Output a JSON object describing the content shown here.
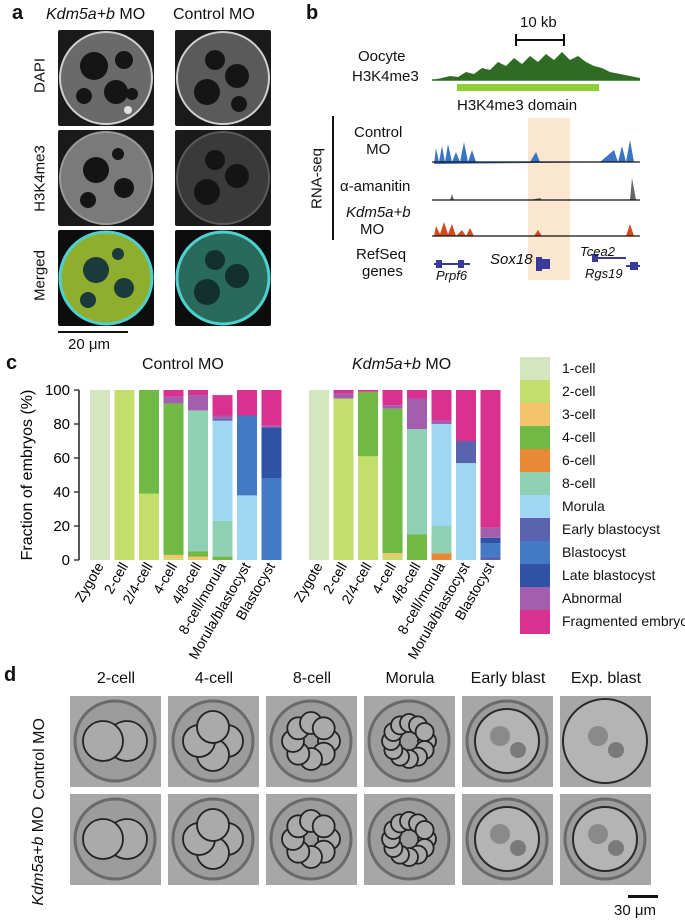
{
  "panel_a": {
    "label": "a",
    "col_titles": [
      {
        "italic": "Kdm5a+b",
        "rest": " MO"
      },
      {
        "italic": "",
        "rest": "Control MO"
      }
    ],
    "row_labels": [
      "DAPI",
      "H3K4me3",
      "Merged"
    ],
    "scale_bar": "20 μm"
  },
  "panel_b": {
    "label": "b",
    "scale_bar": "10 kb",
    "oocyte_track": "Oocyte\nH3K4me3",
    "oocyte_line1": "Oocyte",
    "oocyte_line2": "H3K4me3",
    "domain_label": "H3K4me3 domain",
    "rnaseq_label": "RNA-seq",
    "tracks": [
      {
        "line1": "Control",
        "line2": "MO",
        "italic": false,
        "color": "#3b74c4"
      },
      {
        "line1": "α-amanitin",
        "line2": "",
        "italic": false,
        "color": "#555555"
      },
      {
        "line1": "Kdm5a+b",
        "line2": "MO",
        "italic": true,
        "color": "#d24a1e"
      }
    ],
    "refseq_line1": "RefSeq",
    "refseq_line2": "genes",
    "genes": [
      "Prpf6",
      "Sox18",
      "Tcea2",
      "Rgs19"
    ]
  },
  "panel_c": {
    "label": "c",
    "titles": [
      {
        "italic": "",
        "rest": "Control MO"
      },
      {
        "italic": "Kdm5a+b",
        "rest": " MO"
      }
    ],
    "ylabel": "Fraction of embryos (%)",
    "yticks": [
      "0",
      "20",
      "40",
      "60",
      "80",
      "100"
    ]
  },
  "chart_data": {
    "type": "bar",
    "stacked": true,
    "ylabel": "Fraction of embryos (%)",
    "ylim": [
      0,
      100
    ],
    "categories": [
      "Zygote",
      "2-cell",
      "2/4-cell",
      "4-cell",
      "4/8-cell",
      "8-cell/morula",
      "Morula/blastocyst",
      "Blastocyst"
    ],
    "legend": [
      "1-cell",
      "2-cell",
      "3-cell",
      "4-cell",
      "6-cell",
      "8-cell",
      "Morula",
      "Early blastocyst",
      "Blastocyst",
      "Late blastocyst",
      "Abnormal",
      "Fragmented embryo"
    ],
    "colors": [
      "#d5e5bf",
      "#c3de6a",
      "#f4c46a",
      "#6fb944",
      "#e88a35",
      "#8fd0b4",
      "#9fd6f1",
      "#5a63b0",
      "#4479c3",
      "#2f52a5",
      "#a35ead",
      "#d9318f"
    ],
    "charts": [
      {
        "title": "Control MO",
        "stacks": [
          [
            100,
            0,
            0,
            0,
            0,
            0,
            0,
            0,
            0,
            0,
            0,
            0
          ],
          [
            0,
            100,
            0,
            0,
            0,
            0,
            0,
            0,
            0,
            0,
            0,
            0
          ],
          [
            0,
            39,
            0,
            61,
            0,
            0,
            0,
            0,
            0,
            0,
            0,
            0
          ],
          [
            0,
            1,
            2,
            89,
            0,
            0,
            0,
            0,
            0,
            0,
            4,
            4
          ],
          [
            0,
            0,
            2,
            3,
            0,
            83,
            0,
            0,
            0,
            0,
            9,
            3
          ],
          [
            0,
            0,
            0,
            2,
            0,
            21,
            59,
            1,
            0,
            0,
            2,
            12
          ],
          [
            0,
            0,
            0,
            0,
            0,
            0,
            38,
            0,
            47,
            0,
            0,
            15
          ],
          [
            0,
            0,
            0,
            0,
            0,
            0,
            0,
            0,
            48,
            30,
            1,
            21
          ]
        ]
      },
      {
        "title": "Kdm5a+b MO",
        "stacks": [
          [
            100,
            0,
            0,
            0,
            0,
            0,
            0,
            0,
            0,
            0,
            0,
            0
          ],
          [
            0,
            95,
            0,
            0,
            0,
            0,
            0,
            0,
            0,
            0,
            3,
            2
          ],
          [
            0,
            61,
            0,
            38,
            0,
            0,
            0,
            0,
            0,
            0,
            0,
            1
          ],
          [
            0,
            2,
            2,
            85,
            0,
            0,
            0,
            0,
            0,
            0,
            2,
            9
          ],
          [
            0,
            0,
            0,
            15,
            0,
            62,
            0,
            0,
            0,
            0,
            18,
            5
          ],
          [
            0,
            0,
            0,
            0,
            4,
            16,
            60,
            0,
            0,
            0,
            2,
            18
          ],
          [
            0,
            0,
            0,
            0,
            0,
            0,
            57,
            13,
            0,
            0,
            0,
            30
          ],
          [
            0,
            0,
            0,
            0,
            0,
            0,
            0,
            2,
            8,
            3,
            6,
            81
          ]
        ]
      }
    ]
  },
  "panel_d": {
    "label": "d",
    "col_titles": [
      "2-cell",
      "4-cell",
      "8-cell",
      "Morula",
      "Early blast",
      "Exp. blast"
    ],
    "row_labels": [
      {
        "italic": "",
        "rest": "Control MO"
      },
      {
        "italic": "Kdm5a+b",
        "rest": " MO"
      }
    ],
    "scale_bar": "30 μm",
    "cell_counts": [
      2,
      4,
      8,
      12,
      1,
      1
    ]
  }
}
